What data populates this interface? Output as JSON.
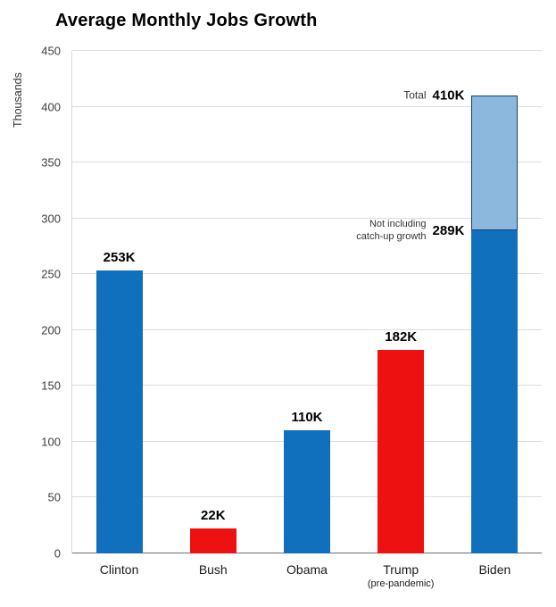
{
  "chart_data": {
    "type": "bar",
    "title": "Average Monthly Jobs Growth",
    "ylabel": "Thousands",
    "xlabel": "",
    "ylim": [
      0,
      450
    ],
    "ytick_step": 50,
    "grid": true,
    "legend": false,
    "colors": {
      "democrat_blue": "#1170bd",
      "republican_red": "#ee1111",
      "catchup_light_blue": "#8cb8de"
    },
    "bars": [
      {
        "category": "Clinton",
        "sublabel": "",
        "value": 253,
        "value_label": "253K",
        "color": "#1170bd"
      },
      {
        "category": "Bush",
        "sublabel": "",
        "value": 22,
        "value_label": "22K",
        "color": "#ee1111"
      },
      {
        "category": "Obama",
        "sublabel": "",
        "value": 110,
        "value_label": "110K",
        "color": "#1170bd"
      },
      {
        "category": "Trump",
        "sublabel": "(pre-pandemic)",
        "value": 182,
        "value_label": "182K",
        "color": "#ee1111"
      },
      {
        "category": "Biden",
        "sublabel": "",
        "value": 289,
        "stack_top": 410,
        "color": "#1170bd",
        "stack_color": "#8cb8de"
      }
    ],
    "annotations": {
      "total": {
        "prefix": "Total",
        "value_label": "410K",
        "y": 410
      },
      "not_including": {
        "prefix": "Not including\ncatch-up growth",
        "value_label": "289K",
        "y": 289
      }
    }
  }
}
